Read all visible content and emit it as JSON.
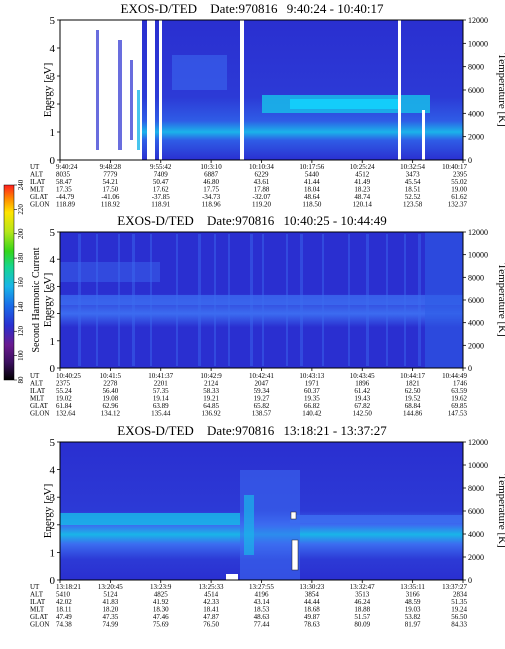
{
  "colors": {
    "background": "#ffffff",
    "spectrogram_base": "#2a2fd0",
    "spectrogram_light": "#3c6cf0",
    "spectrogram_band": "#19b5e8",
    "spectrogram_hot": "#12d6ff",
    "dropout": "#ffffff",
    "colorbar": [
      "#000000",
      "#3a0f5e",
      "#6a1a8f",
      "#2a2fd0",
      "#1a6be8",
      "#19b5e8",
      "#15d690",
      "#34d61a",
      "#b5e61a",
      "#ffe400",
      "#ff8a00",
      "#ff1e1e"
    ]
  },
  "colorbar": {
    "label": "Second Harmonic Current",
    "ticks": [
      "80",
      "100",
      "120",
      "140",
      "160",
      "180",
      "200",
      "220",
      "240"
    ]
  },
  "chart_data": [
    {
      "type": "heatmap",
      "title": "EXOS-D/TED",
      "date": "Date:970816",
      "time_range": "9:40:24 - 10:40:17",
      "ylabel": "Energy [eV]",
      "y2label": "Temperature [K]",
      "ylim": [
        0,
        5
      ],
      "y2lim": [
        0,
        12000
      ],
      "yticks": [
        "0",
        "1",
        "2",
        "3",
        "4",
        "5"
      ],
      "y2ticks": [
        "0",
        "2000",
        "4000",
        "6000",
        "8000",
        "10000",
        "12000"
      ],
      "row_labels": [
        "UT",
        "ALT",
        "ILAT",
        "MLT",
        "GLAT",
        "GLON"
      ],
      "columns": [
        [
          "9:40:24",
          "8035",
          "58.47",
          "17.35",
          "-44.79",
          "118.89"
        ],
        [
          "9:48:28",
          "7779",
          "54.21",
          "17.50",
          "-41.06",
          "118.92"
        ],
        [
          "9:55:42",
          "7409",
          "50.47",
          "17.62",
          "-37.85",
          "118.91"
        ],
        [
          "10:3:10",
          "6887",
          "46.80",
          "17.75",
          "-34.73",
          "118.96"
        ],
        [
          "10:10:34",
          "6229",
          "43.61",
          "17.88",
          "-32.07",
          "119.20"
        ],
        [
          "10:17:56",
          "5440",
          "41.44",
          "18.04",
          "48.64",
          "118.50"
        ],
        [
          "10:25:24",
          "4512",
          "41.49",
          "18.23",
          "48.74",
          "120.14"
        ],
        [
          "10:32:54",
          "3473",
          "45.54",
          "18.51",
          "52.52",
          "123.58"
        ],
        [
          "10:40:17",
          "2395",
          "55.02",
          "19.00",
          "61.62",
          "132.37"
        ]
      ]
    },
    {
      "type": "heatmap",
      "title": "EXOS-D/TED",
      "date": "Date:970816",
      "time_range": "10:40:25 - 10:44:49",
      "ylabel": "Energy [eV]",
      "y2label": "Temperature [K]",
      "ylim": [
        0,
        5
      ],
      "y2lim": [
        0,
        12000
      ],
      "yticks": [
        "0",
        "1",
        "2",
        "3",
        "4",
        "5"
      ],
      "y2ticks": [
        "0",
        "2000",
        "4000",
        "6000",
        "8000",
        "10000",
        "12000"
      ],
      "row_labels": [
        "UT",
        "ALT",
        "ILAT",
        "MLT",
        "GLAT",
        "GLON"
      ],
      "columns": [
        [
          "10:40:25",
          "2375",
          "55.24",
          "19.02",
          "61.84",
          "132.64"
        ],
        [
          "10:41:5",
          "2278",
          "56.40",
          "19.08",
          "62.96",
          "134.12"
        ],
        [
          "10:41:37",
          "2201",
          "57.35",
          "19.14",
          "63.89",
          "135.44"
        ],
        [
          "10:42:9",
          "2124",
          "58.33",
          "19.21",
          "64.85",
          "136.92"
        ],
        [
          "10:42:41",
          "2047",
          "59.34",
          "19.27",
          "65.82",
          "138.57"
        ],
        [
          "10:43:13",
          "1971",
          "60.37",
          "19.35",
          "66.82",
          "140.42"
        ],
        [
          "10:43:45",
          "1896",
          "61.42",
          "19.43",
          "67.82",
          "142.50"
        ],
        [
          "10:44:17",
          "1821",
          "62.50",
          "19.52",
          "68.84",
          "144.86"
        ],
        [
          "10:44:49",
          "1746",
          "63.59",
          "19.62",
          "69.85",
          "147.53"
        ]
      ]
    },
    {
      "type": "heatmap",
      "title": "EXOS-D/TED",
      "date": "Date:970816",
      "time_range": "13:18:21 - 13:37:27",
      "ylabel": "Energy [eV]",
      "y2label": "Temperature [K]",
      "ylim": [
        0,
        5
      ],
      "y2lim": [
        0,
        12000
      ],
      "yticks": [
        "0",
        "1",
        "2",
        "3",
        "4",
        "5"
      ],
      "y2ticks": [
        "0",
        "2000",
        "4000",
        "6000",
        "8000",
        "10000",
        "12000"
      ],
      "row_labels": [
        "UT",
        "ALT",
        "ILAT",
        "MLT",
        "GLAT",
        "GLON"
      ],
      "columns": [
        [
          "13:18:21",
          "5410",
          "42.02",
          "18.11",
          "47.49",
          "74.38"
        ],
        [
          "13:20:45",
          "5124",
          "41.83",
          "18.20",
          "47.35",
          "74.99"
        ],
        [
          "13:23:9",
          "4825",
          "41.92",
          "18.30",
          "47.46",
          "75.69"
        ],
        [
          "13:25:33",
          "4514",
          "42.33",
          "18.41",
          "47.87",
          "76.50"
        ],
        [
          "13:27:55",
          "4196",
          "43.14",
          "18.53",
          "48.63",
          "77.44"
        ],
        [
          "13:30:23",
          "3854",
          "44.44",
          "18.68",
          "49.87",
          "78.63"
        ],
        [
          "13:32:47",
          "3513",
          "46.24",
          "18.88",
          "51.57",
          "80.09"
        ],
        [
          "13:35:11",
          "3166",
          "48.59",
          "19.03",
          "53.82",
          "81.97"
        ],
        [
          "13:37:27",
          "2834",
          "51.35",
          "19.24",
          "56.50",
          "84.33"
        ]
      ]
    }
  ]
}
